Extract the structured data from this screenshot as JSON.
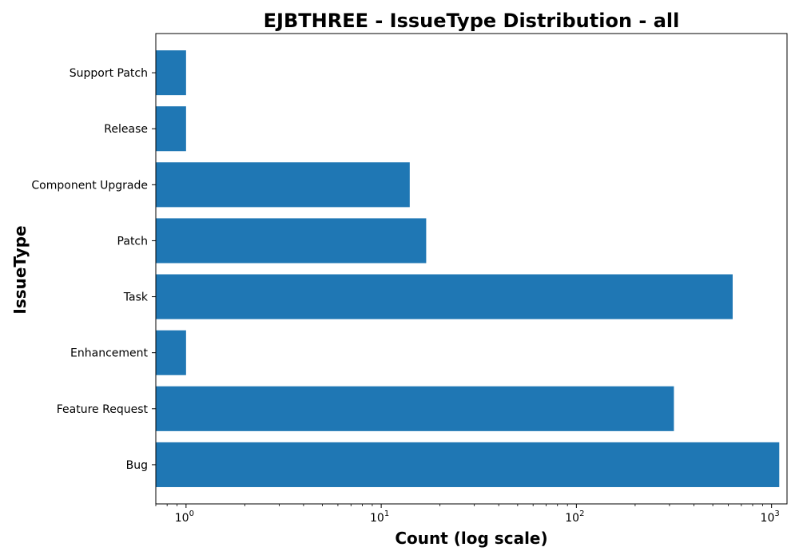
{
  "chart_data": {
    "type": "bar",
    "orientation": "horizontal",
    "title": "EJBTHREE - IssueType Distribution - all",
    "xlabel": "Count (log scale)",
    "ylabel": "IssueType",
    "x_scale": "log",
    "x_ticks": [
      {
        "base": "10",
        "exponent": "0",
        "value": 1
      },
      {
        "base": "10",
        "exponent": "1",
        "value": 10
      },
      {
        "base": "10",
        "exponent": "2",
        "value": 100
      },
      {
        "base": "10",
        "exponent": "3",
        "value": 1000
      }
    ],
    "xlim": [
      0.7,
      1200
    ],
    "categories": [
      "Bug",
      "Feature Request",
      "Enhancement",
      "Task",
      "Patch",
      "Component Upgrade",
      "Release",
      "Support Patch"
    ],
    "values": [
      1095,
      316,
      1,
      632,
      17,
      14,
      1,
      1
    ],
    "bar_color": "#1f77b4",
    "grid": false,
    "legend": false
  }
}
